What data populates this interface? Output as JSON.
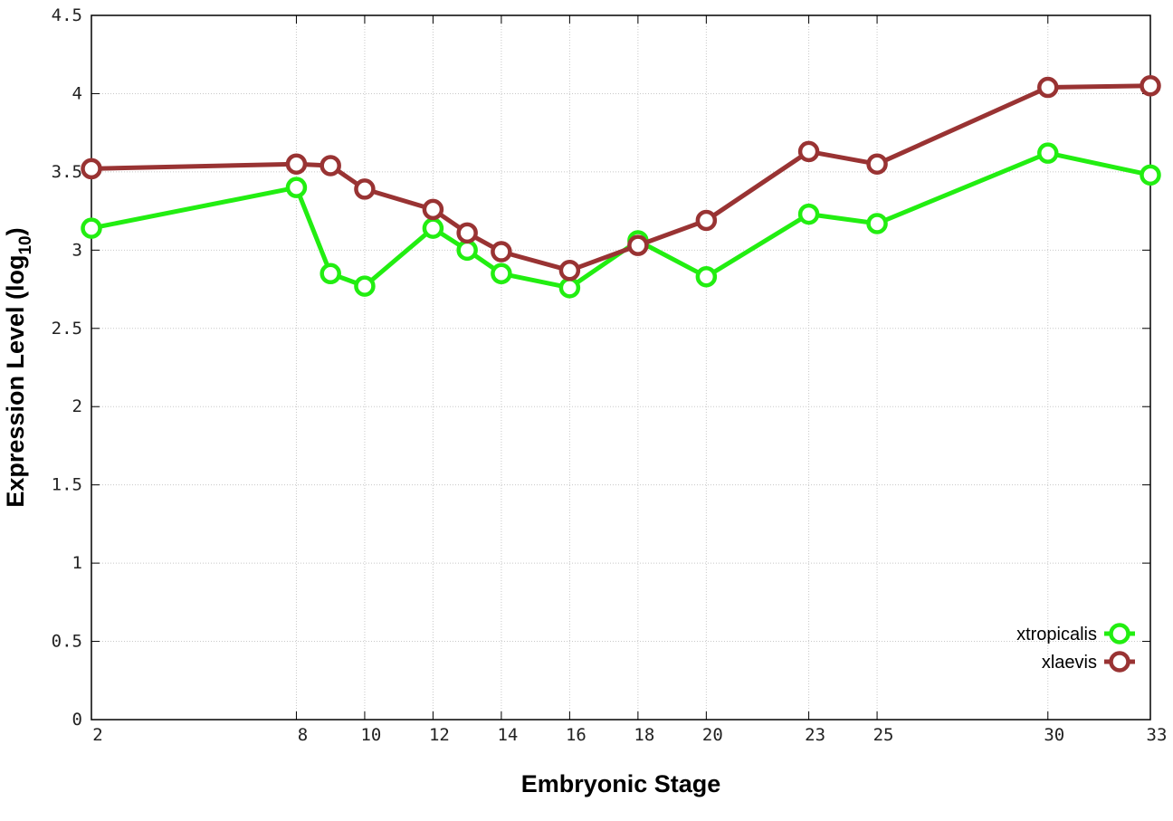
{
  "chart_data": {
    "type": "line",
    "title": "",
    "xlabel": "Embryonic Stage",
    "ylabel": {
      "main": "Expression Level (log",
      "sub": "10",
      "close": ")"
    },
    "x": [
      2,
      8,
      9,
      10,
      12,
      13,
      14,
      16,
      18,
      20,
      23,
      25,
      30,
      33
    ],
    "x_ticks": [
      2,
      8,
      10,
      12,
      14,
      16,
      18,
      20,
      23,
      25,
      30,
      33
    ],
    "xlim": [
      2,
      33
    ],
    "ylim": [
      0,
      4.5
    ],
    "y_ticks": [
      {
        "v": 0,
        "label": "0"
      },
      {
        "v": 0.5,
        "label": "0.5"
      },
      {
        "v": 1,
        "label": "1"
      },
      {
        "v": 1.5,
        "label": "1.5"
      },
      {
        "v": 2,
        "label": "2"
      },
      {
        "v": 2.5,
        "label": "2.5"
      },
      {
        "v": 3,
        "label": "3"
      },
      {
        "v": 3.5,
        "label": "3.5"
      },
      {
        "v": 4,
        "label": "4"
      },
      {
        "v": 4.5,
        "label": "4.5"
      }
    ],
    "grid": true,
    "legend_position": "bottom-right",
    "series": [
      {
        "name": "xtropicalis",
        "color": "#22ee11",
        "values": [
          3.14,
          3.4,
          2.85,
          2.77,
          3.14,
          3.0,
          2.85,
          2.76,
          3.06,
          2.83,
          3.23,
          3.17,
          3.62,
          3.48
        ]
      },
      {
        "name": "xlaevis",
        "color": "#993333",
        "values": [
          3.52,
          3.55,
          3.54,
          3.39,
          3.26,
          3.11,
          2.99,
          2.87,
          3.03,
          3.19,
          3.63,
          3.55,
          4.04,
          4.05
        ]
      }
    ]
  }
}
